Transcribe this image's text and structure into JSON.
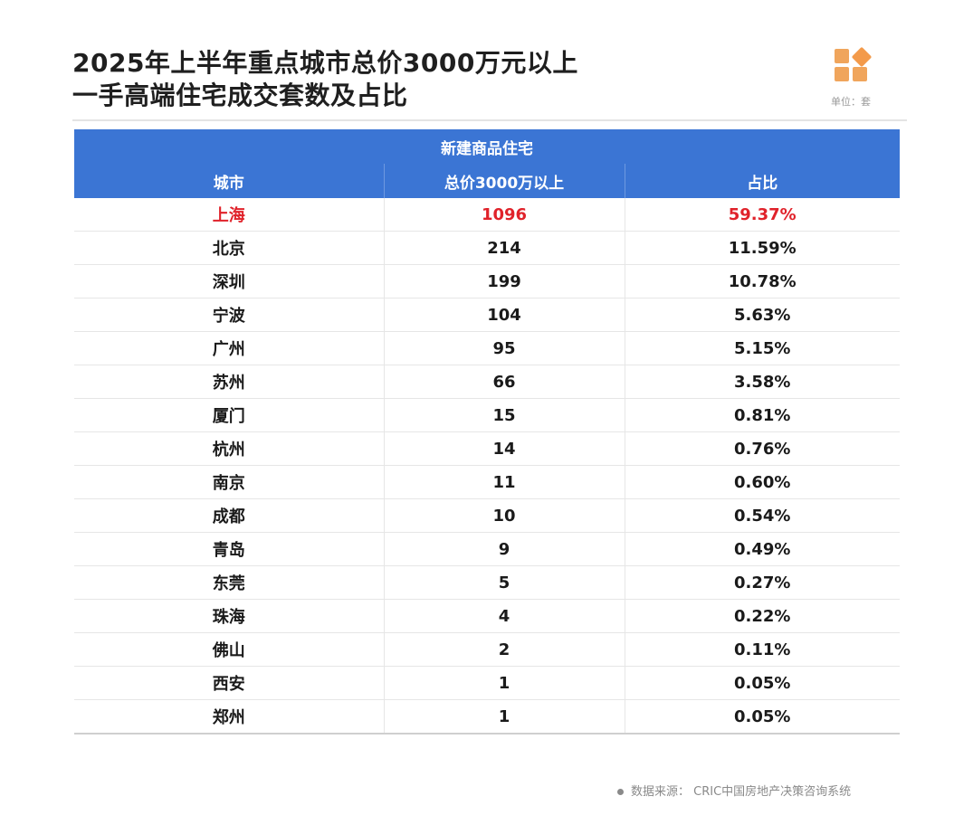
{
  "title": {
    "line1": "2025年上半年重点城市总价3000万元以上",
    "line2": "一手高端住宅成交套数及占比"
  },
  "unit_label": "单位：套",
  "table": {
    "group_header": "新建商品住宅",
    "columns": [
      "城市",
      "总价3000万以上",
      "占比"
    ],
    "rows": [
      {
        "city": "上海",
        "count": "1096",
        "share": "59.37%"
      },
      {
        "city": "北京",
        "count": "214",
        "share": "11.59%"
      },
      {
        "city": "深圳",
        "count": "199",
        "share": "10.78%"
      },
      {
        "city": "宁波",
        "count": "104",
        "share": "5.63%"
      },
      {
        "city": "广州",
        "count": "95",
        "share": "5.15%"
      },
      {
        "city": "苏州",
        "count": "66",
        "share": "3.58%"
      },
      {
        "city": "厦门",
        "count": "15",
        "share": "0.81%"
      },
      {
        "city": "杭州",
        "count": "14",
        "share": "0.76%"
      },
      {
        "city": "南京",
        "count": "11",
        "share": "0.60%"
      },
      {
        "city": "成都",
        "count": "10",
        "share": "0.54%"
      },
      {
        "city": "青岛",
        "count": "9",
        "share": "0.49%"
      },
      {
        "city": "东莞",
        "count": "5",
        "share": "0.27%"
      },
      {
        "city": "珠海",
        "count": "4",
        "share": "0.22%"
      },
      {
        "city": "佛山",
        "count": "2",
        "share": "0.11%"
      },
      {
        "city": "西安",
        "count": "1",
        "share": "0.05%"
      },
      {
        "city": "郑州",
        "count": "1",
        "share": "0.05%"
      }
    ]
  },
  "source": "数据来源：  CRIC中国房地产决策咨询系统",
  "colors": {
    "header_bg": "#3b75d4",
    "highlight_text": "#e0222a",
    "logo": "#f0a55c"
  },
  "icons": {
    "logo": "cric-logo-icon"
  }
}
